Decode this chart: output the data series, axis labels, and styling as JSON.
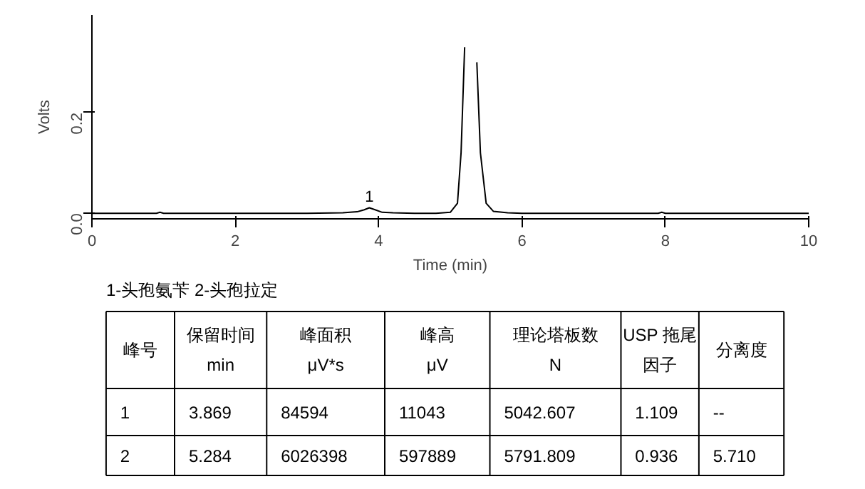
{
  "chart_data": {
    "type": "line",
    "xlabel": "Time (min)",
    "ylabel": "Volts",
    "x": [
      0,
      0.5,
      0.9,
      0.95,
      1.0,
      1.5,
      2.0,
      2.5,
      3.0,
      3.5,
      3.7,
      3.8,
      3.87,
      3.95,
      4.05,
      4.2,
      4.5,
      4.8,
      5.0,
      5.1,
      5.15,
      5.2,
      5.24,
      5.27,
      5.3,
      5.33,
      5.37,
      5.42,
      5.5,
      5.6,
      5.8,
      6.0,
      7.0,
      7.5,
      7.9,
      7.95,
      8.0,
      8.5,
      9.0,
      10
    ],
    "series": [
      {
        "color": "#000000",
        "values": [
          0,
          0,
          0,
          0.002,
          0,
          0,
          0,
          0,
          0,
          0.001,
          0.003,
          0.007,
          0.011,
          0.007,
          0.002,
          0.001,
          0,
          0,
          0.002,
          0.02,
          0.12,
          0.33,
          null,
          null,
          null,
          null,
          0.3,
          0.12,
          0.02,
          0.004,
          0.001,
          0,
          0,
          0,
          0,
          0.002,
          0,
          0,
          0,
          0
        ]
      }
    ],
    "xlim": [
      0,
      10
    ],
    "xticks": [
      0,
      2,
      4,
      6,
      8,
      10
    ],
    "ylim": [
      -0.011,
      0.394
    ],
    "yticks": [
      {
        "value": 0,
        "label": "0.0"
      },
      {
        "value": 0.2,
        "label": "0.2"
      }
    ],
    "annotations": [
      {
        "text": "1",
        "x": 3.87,
        "y": 0.011
      },
      "1-头孢氨苄     2-头孢拉定",
      "峰号",
      "保留时间\nmin",
      "峰面积\nμV*s",
      "峰高\nμV",
      "理论塔板数\nN",
      "USP 拖尾因子",
      "分离度",
      "1",
      "3.869",
      "84594",
      "11043",
      "5042.607",
      "1.109",
      "--",
      "2",
      "5.284",
      "6026398",
      "597889",
      "5791.809",
      "0.936",
      "5.710"
    ]
  }
}
